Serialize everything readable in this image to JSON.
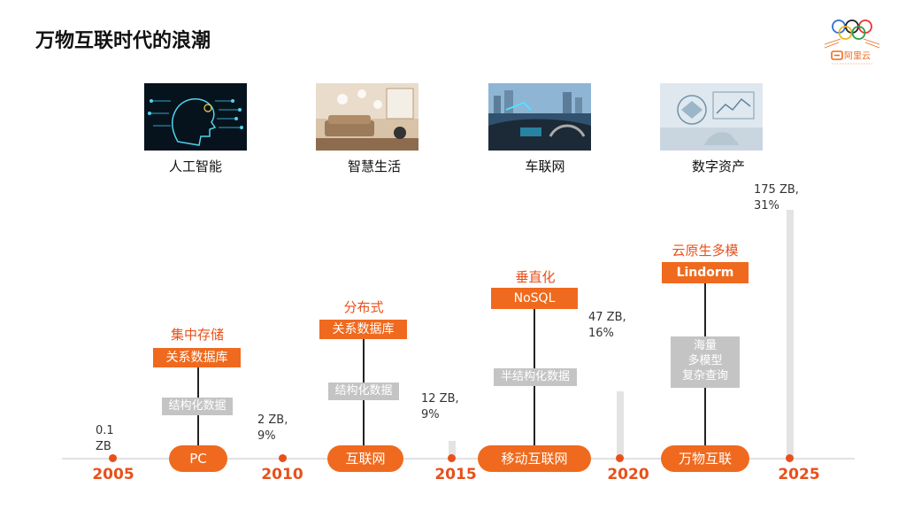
{
  "title": "万物互联时代的浪潮",
  "logo": {
    "brand": "阿里云",
    "icon": "olympic-rings-icon"
  },
  "themes": [
    {
      "label": "人工智能",
      "image": "ai-head-image"
    },
    {
      "label": "智慧生活",
      "image": "smart-home-image"
    },
    {
      "label": "车联网",
      "image": "connected-car-image"
    },
    {
      "label": "数字资产",
      "image": "digital-assets-image"
    }
  ],
  "timeline": {
    "years": [
      "2005",
      "2010",
      "2015",
      "2020",
      "2025"
    ],
    "volumes": [
      {
        "year": "2005",
        "label": "0.1\nZB",
        "value_zb": 0.1
      },
      {
        "year": "2010",
        "label": "2 ZB,\n9%",
        "value_zb": 2
      },
      {
        "year": "2015",
        "label": "12 ZB,\n9%",
        "value_zb": 12
      },
      {
        "year": "2020",
        "label": "47 ZB,\n16%",
        "value_zb": 47
      },
      {
        "year": "2025",
        "label": "175 ZB,\n31%",
        "value_zb": 175
      }
    ],
    "eras": [
      "PC",
      "互联网",
      "移动互联网",
      "万物互联"
    ],
    "stages": [
      {
        "title": "集中存储",
        "db": "关系数据库",
        "data": "结构化数据"
      },
      {
        "title": "分布式",
        "db": "关系数据库",
        "data": "结构化数据"
      },
      {
        "title": "垂直化",
        "db": "NoSQL",
        "data": "半结构化数据"
      },
      {
        "title": "云原生多模",
        "db": "Lindorm",
        "data_lines": [
          "海量",
          "多模型",
          "复杂查询"
        ]
      }
    ]
  },
  "colors": {
    "accent": "#ef6a1e",
    "year": "#e8501a",
    "bar": "#e3e3e3",
    "tag": "#c4c4c4"
  }
}
